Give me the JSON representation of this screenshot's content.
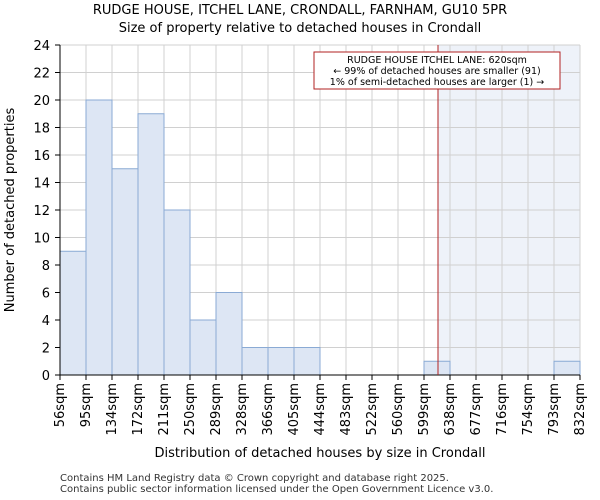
{
  "chart_data": {
    "type": "bar",
    "title": "RUDGE HOUSE, ITCHEL LANE, CRONDALL, FARNHAM, GU10 5PR",
    "subtitle": "Size of property relative to detached houses in Crondall",
    "xlabel": "Distribution of detached houses by size in Crondall",
    "ylabel": "Number of detached properties",
    "bin_edges": [
      56,
      95,
      134,
      172,
      211,
      250,
      289,
      328,
      366,
      405,
      444,
      483,
      522,
      560,
      599,
      638,
      677,
      716,
      754,
      793,
      832
    ],
    "tick_labels": [
      "56sqm",
      "95sqm",
      "134sqm",
      "172sqm",
      "211sqm",
      "250sqm",
      "289sqm",
      "328sqm",
      "366sqm",
      "405sqm",
      "444sqm",
      "483sqm",
      "522sqm",
      "560sqm",
      "599sqm",
      "638sqm",
      "677sqm",
      "716sqm",
      "754sqm",
      "793sqm",
      "832sqm"
    ],
    "values": [
      9,
      20,
      15,
      19,
      12,
      4,
      6,
      2,
      2,
      2,
      0,
      0,
      0,
      0,
      1,
      0,
      0,
      0,
      0,
      1
    ],
    "ylim": [
      0,
      24
    ],
    "yticks": [
      0,
      2,
      4,
      6,
      8,
      10,
      12,
      14,
      16,
      18,
      20,
      22,
      24
    ],
    "grid": true,
    "marker": {
      "value_sqm": 620,
      "lines": [
        "RUDGE HOUSE ITCHEL LANE: 620sqm",
        "← 99% of detached houses are smaller (91)",
        "1% of semi-detached houses are larger (1) →"
      ],
      "color": "#b22222"
    },
    "bar_fill": "#dde6f4",
    "bar_stroke": "#8aaad4",
    "highlight_fill": "#eef2f9"
  },
  "footer": {
    "line1": "Contains HM Land Registry data © Crown copyright and database right 2025.",
    "line2": "Contains public sector information licensed under the Open Government Licence v3.0."
  }
}
